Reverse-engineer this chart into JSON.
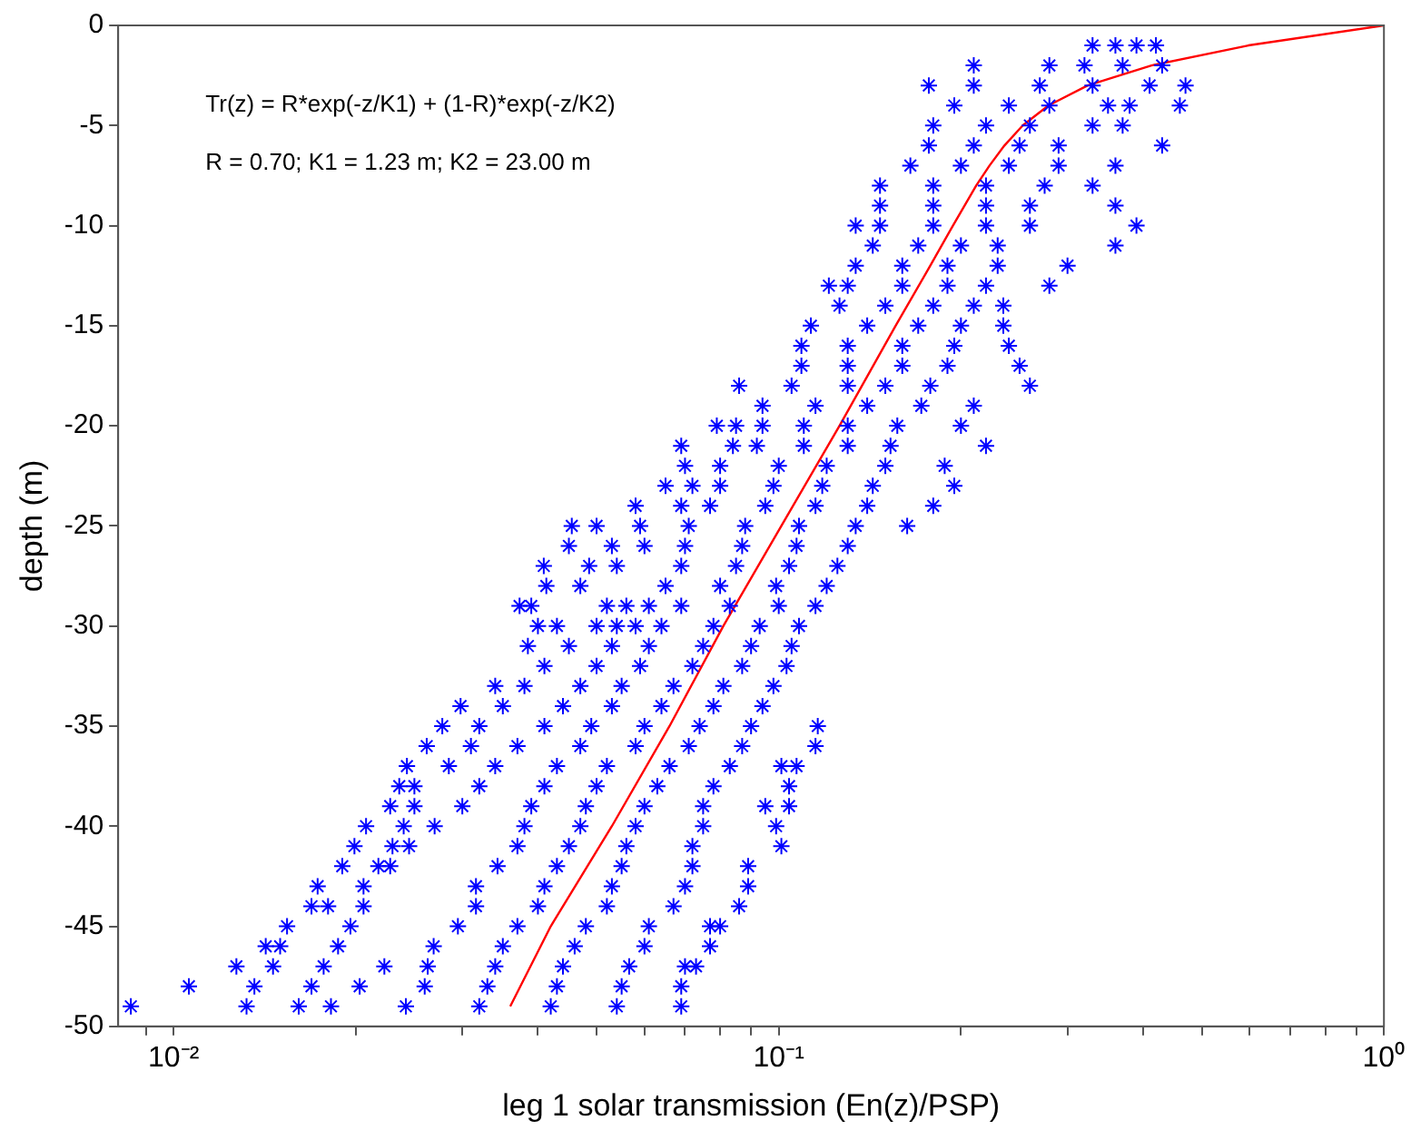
{
  "chart_data": {
    "type": "scatter",
    "xlabel": "leg 1 solar transmission (En(z)/PSP)",
    "ylabel": "depth (m)",
    "log": "x",
    "xlim": [
      0.0081,
      1
    ],
    "xticks": [
      {
        "value": 0.009,
        "label": null
      },
      {
        "value": 0.01,
        "label": "10⁻²"
      },
      {
        "value": 0.02,
        "label": null
      },
      {
        "value": 0.03,
        "label": null
      },
      {
        "value": 0.04,
        "label": null
      },
      {
        "value": 0.05,
        "label": null
      },
      {
        "value": 0.06,
        "label": null
      },
      {
        "value": 0.07,
        "label": null
      },
      {
        "value": 0.08,
        "label": null
      },
      {
        "value": 0.09,
        "label": null
      },
      {
        "value": 0.1,
        "label": "10⁻¹"
      },
      {
        "value": 0.2,
        "label": null
      },
      {
        "value": 0.3,
        "label": null
      },
      {
        "value": 0.4,
        "label": null
      },
      {
        "value": 0.5,
        "label": null
      },
      {
        "value": 0.6,
        "label": null
      },
      {
        "value": 0.7,
        "label": null
      },
      {
        "value": 0.8,
        "label": null
      },
      {
        "value": 0.9,
        "label": null
      },
      {
        "value": 1,
        "label": "10⁰"
      }
    ],
    "ylim": [
      -50,
      0
    ],
    "yticks": [
      -50,
      -45,
      -40,
      -35,
      -30,
      -25,
      -20,
      -15,
      -10,
      -5,
      0
    ],
    "annotations": [
      "Tr(z) = R*exp(-z/K1) + (1-R)*exp(-z/K2)",
      "R = 0.70; K1 = 1.23 m; K2 = 23.00 m"
    ],
    "series": [
      {
        "color": "#0000ff",
        "marker": "cross",
        "x": [
          0.33,
          0.36,
          0.39,
          0.42,
          0.21,
          0.28,
          0.32,
          0.37,
          0.43,
          0.177,
          0.21,
          0.27,
          0.33,
          0.41,
          0.47,
          0.195,
          0.24,
          0.28,
          0.35,
          0.38,
          0.46,
          0.18,
          0.22,
          0.26,
          0.33,
          0.37,
          0.177,
          0.21,
          0.25,
          0.29,
          0.43,
          0.165,
          0.2,
          0.24,
          0.29,
          0.36,
          0.147,
          0.18,
          0.22,
          0.275,
          0.33,
          0.147,
          0.18,
          0.22,
          0.26,
          0.36,
          0.134,
          0.147,
          0.18,
          0.22,
          0.26,
          0.39,
          0.143,
          0.17,
          0.2,
          0.23,
          0.36,
          0.134,
          0.16,
          0.19,
          0.23,
          0.3,
          0.121,
          0.13,
          0.16,
          0.19,
          0.22,
          0.28,
          0.126,
          0.15,
          0.18,
          0.21,
          0.235,
          0.113,
          0.14,
          0.17,
          0.2,
          0.235,
          0.109,
          0.13,
          0.16,
          0.195,
          0.24,
          0.109,
          0.13,
          0.16,
          0.19,
          0.25,
          0.086,
          0.105,
          0.13,
          0.15,
          0.178,
          0.26,
          0.094,
          0.115,
          0.14,
          0.172,
          0.21,
          0.079,
          0.085,
          0.094,
          0.11,
          0.13,
          0.157,
          0.2,
          0.069,
          0.084,
          0.092,
          0.11,
          0.13,
          0.153,
          0.22,
          0.07,
          0.08,
          0.1,
          0.12,
          0.15,
          0.188,
          0.065,
          0.072,
          0.08,
          0.098,
          0.118,
          0.143,
          0.195,
          0.058,
          0.069,
          0.077,
          0.095,
          0.115,
          0.14,
          0.18,
          0.0455,
          0.05,
          0.059,
          0.071,
          0.088,
          0.108,
          0.134,
          0.163,
          0.045,
          0.053,
          0.06,
          0.07,
          0.087,
          0.107,
          0.13,
          0.0409,
          0.0486,
          0.054,
          0.069,
          0.085,
          0.104,
          0.125,
          0.0413,
          0.047,
          0.065,
          0.08,
          0.099,
          0.12,
          0.0373,
          0.039,
          0.052,
          0.056,
          0.061,
          0.069,
          0.083,
          0.1,
          0.115,
          0.04,
          0.043,
          0.05,
          0.054,
          0.058,
          0.064,
          0.078,
          0.093,
          0.108,
          0.0385,
          0.045,
          0.053,
          0.061,
          0.075,
          0.09,
          0.105,
          0.041,
          0.05,
          0.059,
          0.072,
          0.087,
          0.103,
          0.034,
          0.038,
          0.047,
          0.055,
          0.067,
          0.081,
          0.098,
          0.0298,
          0.035,
          0.044,
          0.053,
          0.064,
          0.078,
          0.094,
          0.0278,
          0.032,
          0.041,
          0.049,
          0.06,
          0.074,
          0.09,
          0.116,
          0.0262,
          0.031,
          0.037,
          0.047,
          0.058,
          0.071,
          0.087,
          0.115,
          0.0243,
          0.0285,
          0.034,
          0.043,
          0.052,
          0.066,
          0.083,
          0.101,
          0.107,
          0.0236,
          0.025,
          0.032,
          0.041,
          0.05,
          0.063,
          0.078,
          0.104,
          0.0228,
          0.025,
          0.03,
          0.039,
          0.048,
          0.06,
          0.075,
          0.095,
          0.104,
          0.0208,
          0.024,
          0.027,
          0.038,
          0.047,
          0.058,
          0.075,
          0.099,
          0.0199,
          0.023,
          0.0245,
          0.037,
          0.045,
          0.056,
          0.072,
          0.101,
          0.019,
          0.0218,
          0.0228,
          0.0343,
          0.043,
          0.055,
          0.072,
          0.089,
          0.0173,
          0.0206,
          0.0316,
          0.041,
          0.053,
          0.07,
          0.089,
          0.0169,
          0.018,
          0.0206,
          0.0316,
          0.04,
          0.052,
          0.067,
          0.086,
          0.0154,
          0.0196,
          0.0295,
          0.037,
          0.048,
          0.061,
          0.077,
          0.08,
          0.0142,
          0.015,
          0.0187,
          0.0269,
          0.035,
          0.046,
          0.06,
          0.077,
          0.0127,
          0.0146,
          0.0177,
          0.0223,
          0.0263,
          0.034,
          0.044,
          0.0566,
          0.07,
          0.073,
          0.0106,
          0.0136,
          0.0169,
          0.0203,
          0.026,
          0.033,
          0.043,
          0.055,
          0.069,
          0.0085,
          0.0132,
          0.0161,
          0.0182,
          0.0242,
          0.032,
          0.042,
          0.054,
          0.069
        ],
        "values": [
          -1,
          -1,
          -1,
          -1,
          -2,
          -2,
          -2,
          -2,
          -2,
          -3,
          -3,
          -3,
          -3,
          -3,
          -3,
          -4,
          -4,
          -4,
          -4,
          -4,
          -4,
          -5,
          -5,
          -5,
          -5,
          -5,
          -6,
          -6,
          -6,
          -6,
          -6,
          -7,
          -7,
          -7,
          -7,
          -7,
          -8,
          -8,
          -8,
          -8,
          -8,
          -9,
          -9,
          -9,
          -9,
          -9,
          -10,
          -10,
          -10,
          -10,
          -10,
          -10,
          -11,
          -11,
          -11,
          -11,
          -11,
          -12,
          -12,
          -12,
          -12,
          -12,
          -13,
          -13,
          -13,
          -13,
          -13,
          -13,
          -14,
          -14,
          -14,
          -14,
          -14,
          -15,
          -15,
          -15,
          -15,
          -15,
          -16,
          -16,
          -16,
          -16,
          -16,
          -17,
          -17,
          -17,
          -17,
          -17,
          -18,
          -18,
          -18,
          -18,
          -18,
          -18,
          -19,
          -19,
          -19,
          -19,
          -19,
          -20,
          -20,
          -20,
          -20,
          -20,
          -20,
          -20,
          -21,
          -21,
          -21,
          -21,
          -21,
          -21,
          -21,
          -22,
          -22,
          -22,
          -22,
          -22,
          -22,
          -23,
          -23,
          -23,
          -23,
          -23,
          -23,
          -23,
          -24,
          -24,
          -24,
          -24,
          -24,
          -24,
          -24,
          -25,
          -25,
          -25,
          -25,
          -25,
          -25,
          -25,
          -25,
          -26,
          -26,
          -26,
          -26,
          -26,
          -26,
          -26,
          -27,
          -27,
          -27,
          -27,
          -27,
          -27,
          -27,
          -28,
          -28,
          -28,
          -28,
          -28,
          -28,
          -29,
          -29,
          -29,
          -29,
          -29,
          -29,
          -29,
          -29,
          -29,
          -30,
          -30,
          -30,
          -30,
          -30,
          -30,
          -30,
          -30,
          -30,
          -31,
          -31,
          -31,
          -31,
          -31,
          -31,
          -31,
          -32,
          -32,
          -32,
          -32,
          -32,
          -32,
          -33,
          -33,
          -33,
          -33,
          -33,
          -33,
          -33,
          -34,
          -34,
          -34,
          -34,
          -34,
          -34,
          -34,
          -35,
          -35,
          -35,
          -35,
          -35,
          -35,
          -35,
          -35,
          -36,
          -36,
          -36,
          -36,
          -36,
          -36,
          -36,
          -36,
          -37,
          -37,
          -37,
          -37,
          -37,
          -37,
          -37,
          -37,
          -37,
          -38,
          -38,
          -38,
          -38,
          -38,
          -38,
          -38,
          -38,
          -39,
          -39,
          -39,
          -39,
          -39,
          -39,
          -39,
          -39,
          -39,
          -40,
          -40,
          -40,
          -40,
          -40,
          -40,
          -40,
          -40,
          -41,
          -41,
          -41,
          -41,
          -41,
          -41,
          -41,
          -41,
          -42,
          -42,
          -42,
          -42,
          -42,
          -42,
          -42,
          -42,
          -43,
          -43,
          -43,
          -43,
          -43,
          -43,
          -43,
          -44,
          -44,
          -44,
          -44,
          -44,
          -44,
          -44,
          -44,
          -45,
          -45,
          -45,
          -45,
          -45,
          -45,
          -45,
          -45,
          -46,
          -46,
          -46,
          -46,
          -46,
          -46,
          -46,
          -46,
          -47,
          -47,
          -47,
          -47,
          -47,
          -47,
          -47,
          -47,
          -47,
          -47,
          -48,
          -48,
          -48,
          -48,
          -48,
          -48,
          -48,
          -48,
          -48,
          -49,
          -49,
          -49,
          -49,
          -49,
          -49,
          -49,
          -49,
          -49
        ]
      },
      {
        "type": "line",
        "color": "#ff0000",
        "marker": "none",
        "line_style": "solid",
        "x": [
          1,
          0.597,
          0.413,
          0.324,
          0.279,
          0.253,
          0.236,
          0.223,
          0.212,
          0.194,
          0.178,
          0.156,
          0.126,
          0.101,
          0.081,
          0.066,
          0.053,
          0.042,
          0.036
        ],
        "values": [
          0,
          -1,
          -2,
          -3,
          -4,
          -5,
          -6,
          -7,
          -8,
          -10,
          -12,
          -15,
          -20,
          -25,
          -30,
          -35,
          -40,
          -45,
          -49
        ]
      }
    ]
  }
}
